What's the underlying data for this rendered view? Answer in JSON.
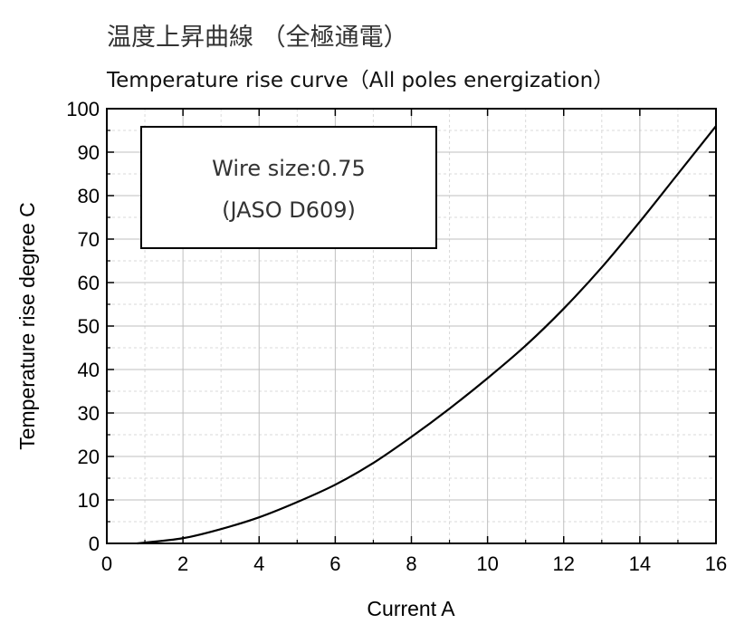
{
  "chart_data": {
    "type": "line",
    "title": "温度上昇曲線 （全極通電）",
    "subtitle": "Temperature rise curve（All poles energization）",
    "xlabel": "Current  A",
    "ylabel": "Temperature rise  degree C",
    "xlim": [
      0,
      16
    ],
    "ylim": [
      0,
      100
    ],
    "xticks": [
      "0",
      "2",
      "4",
      "6",
      "8",
      "10",
      "12",
      "14",
      "16"
    ],
    "yticks": [
      "0",
      "10",
      "20",
      "30",
      "40",
      "50",
      "60",
      "70",
      "80",
      "90",
      "100"
    ],
    "grid": true,
    "annotation": {
      "line1": "Wire size:0.75",
      "line2": "(JASO D609)"
    },
    "series": [
      {
        "x": [
          0.8,
          2,
          3,
          4,
          5,
          6,
          7,
          8,
          9,
          10,
          11,
          12,
          13,
          14,
          15,
          16
        ],
        "values": [
          0,
          1.2,
          3.3,
          6,
          9.5,
          13.5,
          18.5,
          24.5,
          31,
          38,
          45.5,
          54,
          63.5,
          74,
          85,
          96
        ]
      }
    ],
    "colors": {
      "line": "#000000",
      "grid": "#bfbfbf",
      "grid_minor": "#d9d9d9"
    }
  }
}
